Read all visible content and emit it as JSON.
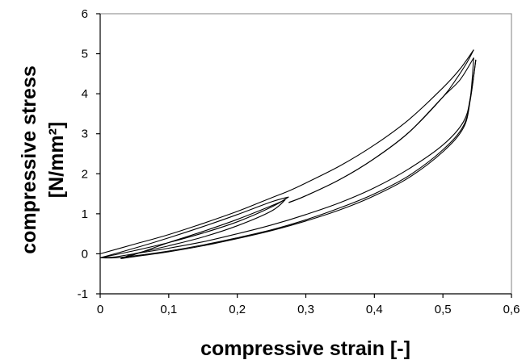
{
  "chart_data": {
    "type": "line",
    "title": "",
    "xlabel": "compressive strain [-]",
    "ylabel_line1": "compressive stress",
    "ylabel_line2": "[N/mm²]",
    "xlim": [
      0,
      0.6
    ],
    "ylim": [
      -1,
      6
    ],
    "x_ticks": [
      0,
      0.1,
      0.2,
      0.3,
      0.4,
      0.5,
      0.6
    ],
    "x_tick_labels": [
      "0",
      "0,1",
      "0,2",
      "0,3",
      "0,4",
      "0,5",
      "0,6"
    ],
    "y_ticks": [
      -1,
      0,
      1,
      2,
      3,
      4,
      5,
      6
    ],
    "y_tick_labels": [
      "-1",
      "0",
      "1",
      "2",
      "3",
      "4",
      "5",
      "6"
    ],
    "grid": false,
    "legend": false,
    "series": [
      {
        "x": [
          0.0,
          0.05,
          0.1,
          0.15,
          0.2,
          0.25,
          0.275,
          0.3,
          0.35,
          0.4,
          0.45,
          0.5,
          0.525,
          0.545
        ],
        "y": [
          0.0,
          0.24,
          0.48,
          0.76,
          1.06,
          1.4,
          1.57,
          1.77,
          2.2,
          2.72,
          3.35,
          4.15,
          4.62,
          5.1
        ]
      },
      {
        "x": [
          0.545,
          0.535,
          0.52,
          0.5,
          0.45,
          0.4,
          0.35,
          0.3,
          0.275
        ],
        "y": [
          5.1,
          4.78,
          4.38,
          3.92,
          3.03,
          2.38,
          1.86,
          1.45,
          1.28
        ]
      },
      {
        "x": [
          0.275,
          0.3,
          0.35,
          0.4,
          0.45,
          0.5,
          0.525,
          0.545
        ],
        "y": [
          1.28,
          1.45,
          1.86,
          2.38,
          3.03,
          3.92,
          4.35,
          4.9
        ]
      },
      {
        "x": [
          0.545,
          0.54,
          0.53,
          0.5,
          0.45,
          0.4,
          0.35,
          0.3,
          0.25,
          0.2,
          0.15,
          0.1,
          0.05,
          0.02,
          0.0
        ],
        "y": [
          4.9,
          3.9,
          3.2,
          2.6,
          1.95,
          1.5,
          1.15,
          0.85,
          0.6,
          0.4,
          0.22,
          0.07,
          -0.05,
          -0.1,
          -0.1
        ]
      },
      {
        "x": [
          0.0,
          0.02,
          0.05,
          0.1,
          0.15,
          0.2,
          0.25,
          0.3,
          0.35,
          0.4,
          0.45,
          0.5,
          0.53,
          0.54,
          0.548
        ],
        "y": [
          -0.1,
          -0.08,
          0.0,
          0.14,
          0.3,
          0.5,
          0.72,
          0.98,
          1.28,
          1.65,
          2.12,
          2.72,
          3.3,
          3.9,
          4.85
        ]
      },
      {
        "x": [
          0.548,
          0.54,
          0.53,
          0.5,
          0.45,
          0.4,
          0.35,
          0.3,
          0.25,
          0.2,
          0.15,
          0.1,
          0.05,
          0.03
        ],
        "y": [
          4.85,
          3.85,
          3.15,
          2.55,
          1.9,
          1.45,
          1.1,
          0.82,
          0.58,
          0.38,
          0.2,
          0.05,
          -0.07,
          -0.12
        ]
      },
      {
        "x": [
          0.03,
          0.05,
          0.1,
          0.15,
          0.2,
          0.25,
          0.27
        ],
        "y": [
          -0.12,
          -0.02,
          0.28,
          0.56,
          0.86,
          1.2,
          1.35
        ]
      },
      {
        "x": [
          0.27,
          0.25,
          0.2,
          0.15,
          0.1,
          0.05,
          0.03
        ],
        "y": [
          1.35,
          1.07,
          0.7,
          0.42,
          0.2,
          0.0,
          -0.12
        ]
      },
      {
        "x": [
          0.0,
          0.05,
          0.1,
          0.15,
          0.2,
          0.25,
          0.275
        ],
        "y": [
          -0.1,
          0.14,
          0.4,
          0.68,
          0.98,
          1.3,
          1.42
        ]
      },
      {
        "x": [
          0.275,
          0.25,
          0.2,
          0.15,
          0.1,
          0.05,
          0.0
        ],
        "y": [
          1.42,
          1.17,
          0.8,
          0.52,
          0.28,
          0.08,
          -0.1
        ]
      }
    ]
  }
}
